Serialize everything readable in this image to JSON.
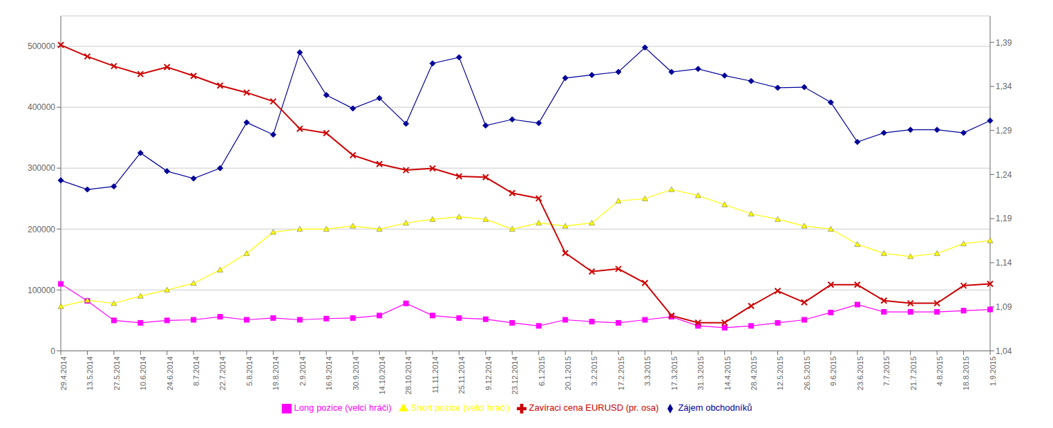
{
  "chart_data": {
    "type": "line",
    "categories": [
      "29.4.2014",
      "13.5.2014",
      "27.5.2014",
      "10.6.2014",
      "24.6.2014",
      "8.7.2014",
      "22.7.2014",
      "5.8.2014",
      "19.8.2014",
      "2.9.2014",
      "16.9.2014",
      "30.9.2014",
      "14.10.2014",
      "28.10.2014",
      "11.11.2014",
      "25.11.2014",
      "9.12.2014",
      "23.12.2014",
      "6.1.2015",
      "20.1.2015",
      "3.2.2015",
      "17.2.2015",
      "3.3.2015",
      "17.3.2015",
      "31.3.2015",
      "14.4.2015",
      "28.4.2015",
      "12.5.2015",
      "26.5.2015",
      "9.6.2015",
      "23.6.2015",
      "7.7.2015",
      "21.7.2015",
      "4.8.2015",
      "18.8.2015",
      "1.9.2015"
    ],
    "series": [
      {
        "name": "Zájem obchodníků",
        "color": "#000099",
        "marker": "diamond",
        "values": [
          280000,
          265000,
          270000,
          325000,
          295000,
          283000,
          300000,
          375000,
          355000,
          490000,
          420000,
          398000,
          415000,
          373000,
          472000,
          482000,
          370000,
          380000,
          374000,
          448000,
          453000,
          458000,
          498000,
          458000,
          463000,
          452000,
          443000,
          432000,
          433000,
          408000,
          343000,
          358000,
          363000,
          363000,
          358000,
          378000
        ]
      },
      {
        "name": "Long pozice (velcí hráči)",
        "color": "#ff00ff",
        "marker": "square",
        "values": [
          110000,
          82000,
          50000,
          46000,
          50000,
          51000,
          56000,
          51000,
          54000,
          51000,
          53000,
          54000,
          58000,
          78000,
          58000,
          54000,
          52000,
          46000,
          41000,
          51000,
          48000,
          46000,
          51000,
          56000,
          41000,
          38000,
          41000,
          46000,
          51000,
          63000,
          76000,
          64000,
          64000,
          64000,
          66000,
          68000
        ]
      },
      {
        "name": "Short pozice (velcí hráči)",
        "color": "#ffff00",
        "marker": "triangle",
        "values": [
          73000,
          83000,
          78000,
          90000,
          100000,
          111000,
          133000,
          160000,
          195000,
          200000,
          200000,
          205000,
          200000,
          210000,
          216000,
          220000,
          216000,
          200000,
          210000,
          205000,
          210000,
          246000,
          250000,
          265000,
          255000,
          240000,
          225000,
          216000,
          205000,
          200000,
          175000,
          160000,
          155000,
          160000,
          176000,
          181000
        ]
      },
      {
        "name": "Zavíraci cena EURUSD (pr. osa)",
        "color": "#cc0000",
        "marker": "x",
        "axis": "y2",
        "values": [
          1.387,
          1.374,
          1.363,
          1.354,
          1.362,
          1.352,
          1.341,
          1.333,
          1.323,
          1.292,
          1.287,
          1.262,
          1.252,
          1.245,
          1.247,
          1.238,
          1.237,
          1.219,
          1.213,
          1.151,
          1.13,
          1.133,
          1.117,
          1.08,
          1.072,
          1.072,
          1.091,
          1.108,
          1.095,
          1.115,
          1.115,
          1.097,
          1.094,
          1.094,
          1.114,
          1.116
        ]
      }
    ],
    "ylim": [
      0,
      550000
    ],
    "yticks": [
      0,
      100000,
      200000,
      300000,
      400000,
      500000
    ],
    "y2lim": [
      1.04,
      1.42
    ],
    "y2ticks": [
      {
        "value": 1.04,
        "label": "1,04"
      },
      {
        "value": 1.09,
        "label": "1,09"
      },
      {
        "value": 1.14,
        "label": "1,14"
      },
      {
        "value": 1.19,
        "label": "1,19"
      },
      {
        "value": 1.24,
        "label": "1,24"
      },
      {
        "value": 1.29,
        "label": "1,29"
      },
      {
        "value": 1.34,
        "label": "1,34"
      },
      {
        "value": 1.39,
        "label": "1,39"
      }
    ],
    "grid": true,
    "legend": "bottom"
  }
}
